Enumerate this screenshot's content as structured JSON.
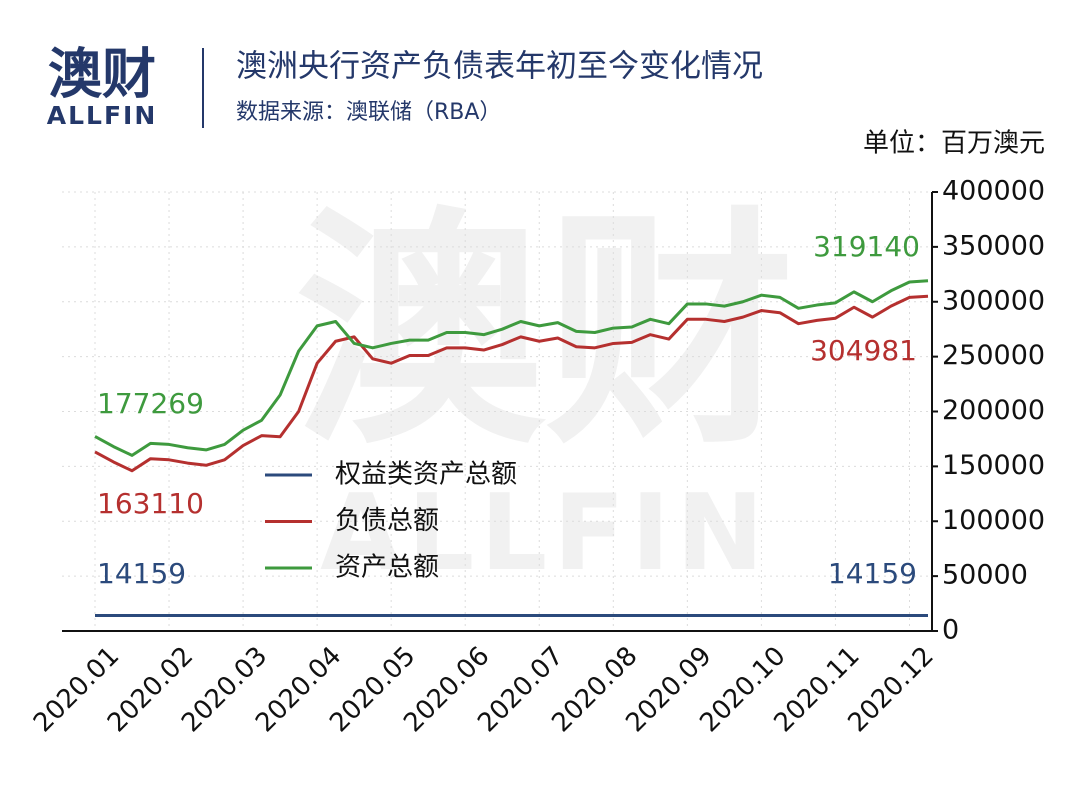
{
  "chart_data": {
    "type": "line",
    "logo": {
      "cn": "澳财",
      "en": "ALLFIN"
    },
    "title": "澳洲央行资产负债表年初至今变化情况",
    "subtitle": "数据来源：澳联储（RBA）",
    "unit_label": "单位：百万澳元",
    "categories": [
      "2020.01",
      null,
      null,
      null,
      "2020.02",
      null,
      null,
      null,
      "2020.03",
      null,
      null,
      null,
      "2020.04",
      null,
      null,
      null,
      "2020.05",
      null,
      null,
      null,
      "2020.06",
      null,
      null,
      null,
      "2020.07",
      null,
      null,
      null,
      "2020.08",
      null,
      null,
      null,
      "2020.09",
      null,
      null,
      null,
      "2020.10",
      null,
      null,
      null,
      "2020.11",
      null,
      null,
      null,
      "2020.12",
      null
    ],
    "series": [
      {
        "name": "权益类资产总额",
        "color": "#2b4a7c",
        "values": [
          14159,
          14159,
          14159,
          14159,
          14159,
          14159,
          14159,
          14159,
          14159,
          14159,
          14159,
          14159,
          14159,
          14159,
          14159,
          14159,
          14159,
          14159,
          14159,
          14159,
          14159,
          14159,
          14159,
          14159,
          14159,
          14159,
          14159,
          14159,
          14159,
          14159,
          14159,
          14159,
          14159,
          14159,
          14159,
          14159,
          14159,
          14159,
          14159,
          14159,
          14159,
          14159,
          14159,
          14159,
          14159,
          14159
        ]
      },
      {
        "name": "负债总额",
        "color": "#b5302f",
        "values": [
          163110,
          154000,
          146000,
          157000,
          156000,
          153000,
          151000,
          156000,
          169000,
          178000,
          177000,
          200000,
          244000,
          264000,
          268000,
          248000,
          244000,
          251000,
          251000,
          258000,
          258000,
          256000,
          261000,
          268000,
          264000,
          267000,
          259000,
          258000,
          262000,
          263000,
          270000,
          266000,
          284000,
          284000,
          282000,
          286000,
          292000,
          290000,
          280000,
          283000,
          285000,
          295000,
          286000,
          296000,
          304000,
          304981
        ]
      },
      {
        "name": "资产总额",
        "color": "#3e9a3e",
        "values": [
          177269,
          168000,
          160000,
          171000,
          170000,
          167000,
          165000,
          170000,
          183000,
          192000,
          215000,
          255000,
          278000,
          282000,
          262000,
          258000,
          262000,
          265000,
          265000,
          272000,
          272000,
          270000,
          275000,
          282000,
          278000,
          281000,
          273000,
          272000,
          276000,
          277000,
          284000,
          280000,
          298000,
          298000,
          296000,
          300000,
          306000,
          304000,
          294000,
          297000,
          299000,
          309000,
          300000,
          310000,
          318000,
          319140
        ]
      }
    ],
    "ylim": [
      0,
      400000
    ],
    "yticks": [
      0,
      50000,
      100000,
      150000,
      200000,
      250000,
      300000,
      350000,
      400000
    ],
    "grid": true,
    "legend": "center-left"
  }
}
